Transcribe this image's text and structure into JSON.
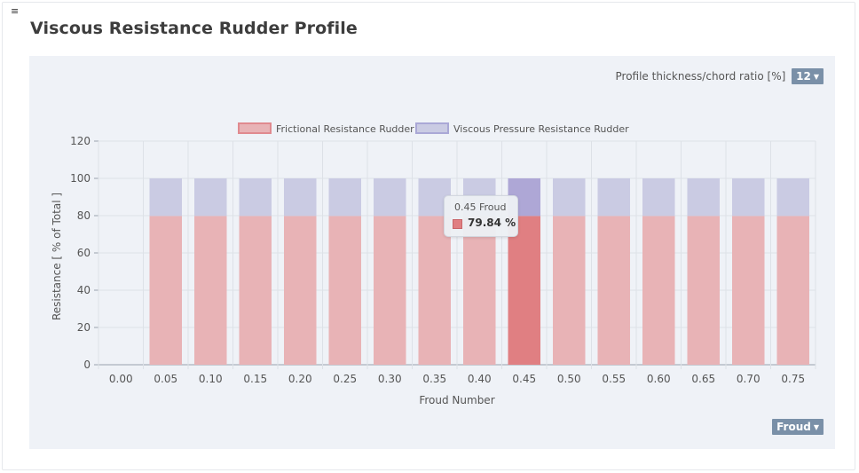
{
  "header": {
    "menu_icon": "hamburger-icon",
    "title": "Viscous Resistance Rudder Profile"
  },
  "controls": {
    "thickness_label": "Profile thickness/chord ratio [%]",
    "thickness_value": "12",
    "xaxis_select_value": "Froud",
    "caret_icon": "chevron-down-icon",
    "caret_glyph": "▼"
  },
  "tooltip": {
    "title": "0.45 Froud",
    "value": "79.84 %"
  },
  "colors": {
    "frictional": "#e8b3b6",
    "frictional_border": "#e08a8f",
    "frictional_hover": "#e07f82",
    "pressure": "#cacbe3",
    "pressure_border": "#aaa8d6",
    "pressure_hover": "#aea7d6",
    "panel_bg": "#eff2f7",
    "badge": "#7a90a8"
  },
  "chart_data": {
    "type": "bar",
    "stacked": true,
    "xlabel": "Froud Number",
    "ylabel": "Resistance [ % of Total ]",
    "ylim": [
      0,
      120
    ],
    "yticks": [
      0,
      20,
      40,
      60,
      80,
      100,
      120
    ],
    "grid": true,
    "legend_position": "top-center",
    "highlighted_category": "0.45",
    "categories": [
      "0.00",
      "0.05",
      "0.10",
      "0.15",
      "0.20",
      "0.25",
      "0.30",
      "0.35",
      "0.40",
      "0.45",
      "0.50",
      "0.55",
      "0.60",
      "0.65",
      "0.70",
      "0.75"
    ],
    "series": [
      {
        "name": "Frictional Resistance Rudder",
        "values": [
          0,
          79.84,
          79.84,
          79.84,
          79.84,
          79.84,
          79.84,
          79.84,
          79.84,
          79.84,
          79.84,
          79.84,
          79.84,
          79.84,
          79.84,
          79.84
        ]
      },
      {
        "name": "Viscous Pressure Resistance Rudder",
        "values": [
          0,
          20.16,
          20.16,
          20.16,
          20.16,
          20.16,
          20.16,
          20.16,
          20.16,
          20.16,
          20.16,
          20.16,
          20.16,
          20.16,
          20.16,
          20.16
        ]
      }
    ]
  }
}
